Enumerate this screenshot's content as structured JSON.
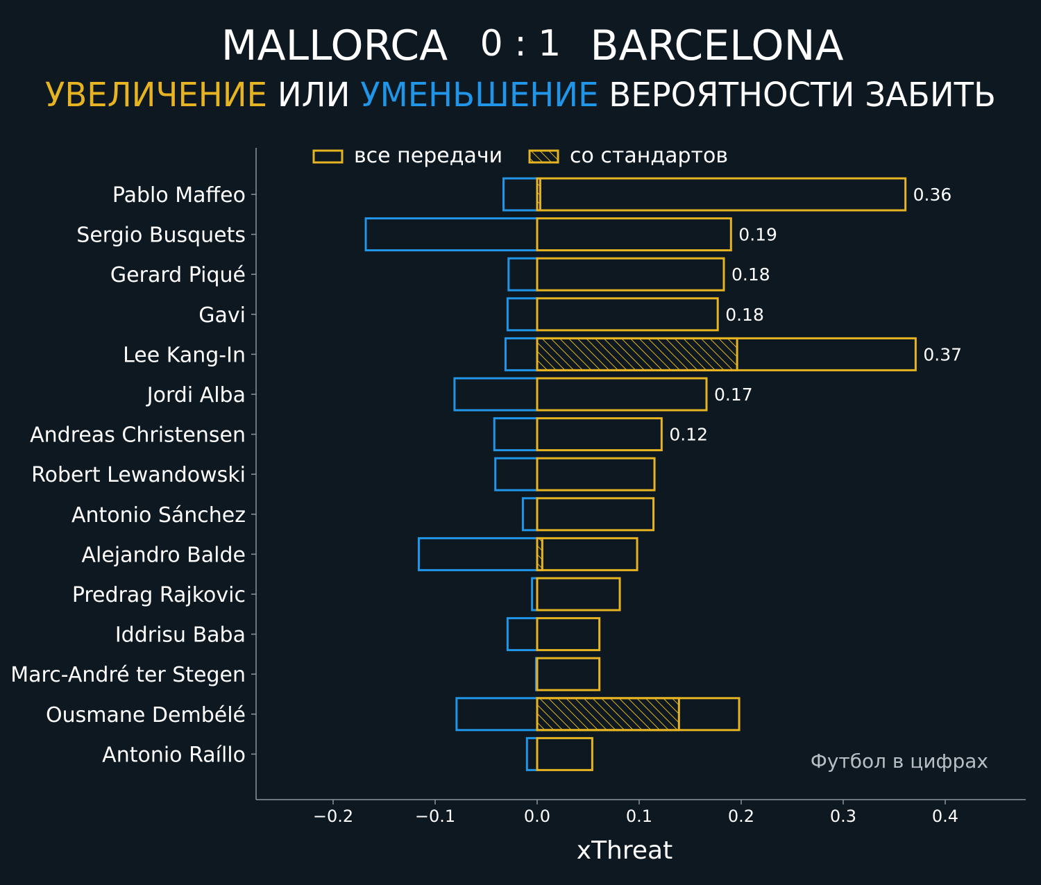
{
  "header": {
    "home_team": "MALLORCA",
    "score": "0 : 1",
    "away_team": "BARCELONA",
    "subtitle_increase": "УВЕЛИЧЕНИЕ",
    "subtitle_or": "ИЛИ",
    "subtitle_decrease": "УМЕНЬШЕНИЕ",
    "subtitle_rest": "ВЕРОЯТНОСТИ ЗАБИТЬ"
  },
  "watermark": "Футбол в цифрах",
  "colors": {
    "background": "#0e1821",
    "positive": "#e6b422",
    "negative": "#2196e8",
    "text": "#ffffff",
    "axis": "#8a96a0",
    "watermark": "#b7bec4"
  },
  "chart_data": {
    "type": "bar",
    "orientation": "horizontal",
    "xlabel": "xThreat",
    "xlim": [
      -0.28,
      0.48
    ],
    "xticks": [
      -0.2,
      -0.1,
      0.0,
      0.1,
      0.2,
      0.3,
      0.4
    ],
    "xtick_labels": [
      "−0.2",
      "−0.1",
      "0.0",
      "0.1",
      "0.2",
      "0.3",
      "0.4"
    ],
    "legend": {
      "placement": "top",
      "entries": [
        {
          "label": "все передачи",
          "style": "outline"
        },
        {
          "label": "со стандартов",
          "style": "hatched"
        }
      ]
    },
    "players": [
      "Pablo Maffeo",
      "Sergio Busquets",
      "Gerard Piqué",
      "Gavi",
      "Lee Kang-In",
      "Jordi Alba",
      "Andreas Christensen",
      "Robert Lewandowski",
      "Antonio Sánchez",
      "Alejandro Balde",
      "Predrag Rajkovic",
      "Iddrisu Baba",
      "Marc-André ter Stegen",
      "Ousmane Dembélé",
      "Antonio Raíllo"
    ],
    "series": [
      {
        "name": "все передачи",
        "kind": "positive",
        "values": [
          0.361,
          0.19,
          0.183,
          0.177,
          0.371,
          0.166,
          0.122,
          0.115,
          0.114,
          0.098,
          0.081,
          0.061,
          0.061,
          0.198,
          0.054
        ]
      },
      {
        "name": "все передачи",
        "kind": "negative",
        "values": [
          -0.033,
          -0.168,
          -0.028,
          -0.029,
          -0.031,
          -0.081,
          -0.042,
          -0.041,
          -0.014,
          -0.116,
          -0.005,
          -0.029,
          -0.001,
          -0.079,
          -0.01
        ]
      },
      {
        "name": "со стандартов",
        "kind": "set_piece",
        "values": [
          0.003,
          0,
          0,
          0,
          0.196,
          0,
          0,
          0,
          0,
          0.005,
          0,
          0,
          0,
          0.139,
          0
        ]
      }
    ],
    "value_labels": [
      "0.36",
      "0.19",
      "0.18",
      "0.18",
      "0.37",
      "0.17",
      "0.12",
      null,
      null,
      null,
      null,
      null,
      null,
      null,
      null
    ]
  }
}
